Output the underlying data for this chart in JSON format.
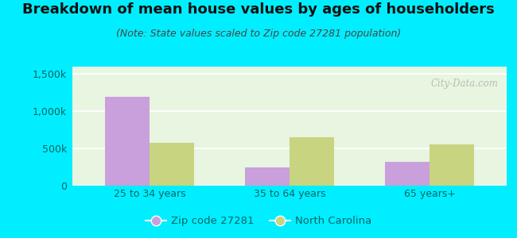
{
  "title": "Breakdown of mean house values by ages of householders",
  "subtitle": "(Note: State values scaled to Zip code 27281 population)",
  "categories": [
    "25 to 34 years",
    "35 to 64 years",
    "65 years+"
  ],
  "zip_values": [
    1200000,
    250000,
    320000
  ],
  "nc_values": [
    580000,
    650000,
    560000
  ],
  "zip_color": "#c9a0dc",
  "nc_color": "#c8d480",
  "background_outer": "#00eeff",
  "background_inner_top": "#e8f5e0",
  "background_inner_bottom": "#f8fff8",
  "ylim": [
    0,
    1600000
  ],
  "yticks": [
    0,
    500000,
    1000000,
    1500000
  ],
  "ytick_labels": [
    "0",
    "500k",
    "1,000k",
    "1,500k"
  ],
  "legend_zip_label": "Zip code 27281",
  "legend_nc_label": "North Carolina",
  "bar_width": 0.32,
  "title_fontsize": 13,
  "subtitle_fontsize": 9,
  "tick_fontsize": 9,
  "legend_fontsize": 9.5,
  "watermark": "City-Data.com",
  "tick_color": "#006666",
  "title_color": "#111111",
  "subtitle_color": "#444444"
}
